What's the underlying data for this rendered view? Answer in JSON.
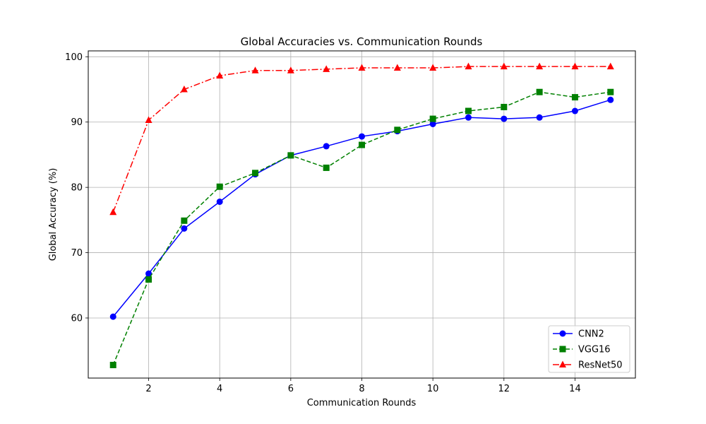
{
  "chart_data": {
    "type": "line",
    "title": "Global Accuracies vs. Communication Rounds",
    "xlabel": "Communication Rounds",
    "ylabel": "Global Accuracy (%)",
    "xlim": [
      0.3,
      15.7
    ],
    "ylim": [
      50.8,
      100.9
    ],
    "xticks": [
      2,
      4,
      6,
      8,
      10,
      12,
      14
    ],
    "yticks": [
      60,
      70,
      80,
      90,
      100
    ],
    "grid": true,
    "legend_position": "lower-right",
    "x": [
      1,
      2,
      3,
      4,
      5,
      6,
      7,
      8,
      9,
      10,
      11,
      12,
      13,
      14,
      15
    ],
    "series": [
      {
        "name": "CNN2",
        "color": "#0000ff",
        "linestyle": "solid",
        "marker": "circle",
        "values": [
          60.2,
          66.8,
          73.7,
          77.8,
          82.0,
          84.9,
          86.3,
          87.8,
          88.6,
          89.7,
          90.7,
          90.5,
          90.7,
          91.7,
          93.4
        ]
      },
      {
        "name": "VGG16",
        "color": "#008000",
        "linestyle": "dashed",
        "marker": "square",
        "values": [
          52.8,
          65.9,
          74.9,
          80.1,
          82.2,
          84.9,
          83.0,
          86.5,
          88.8,
          90.5,
          91.7,
          92.3,
          94.6,
          93.8,
          94.6
        ]
      },
      {
        "name": "ResNet50",
        "color": "#ff0000",
        "linestyle": "dashdot",
        "marker": "triangle",
        "values": [
          76.2,
          90.3,
          95.0,
          97.1,
          97.9,
          97.9,
          98.1,
          98.3,
          98.3,
          98.3,
          98.5,
          98.5,
          98.5,
          98.5,
          98.5
        ]
      }
    ]
  }
}
